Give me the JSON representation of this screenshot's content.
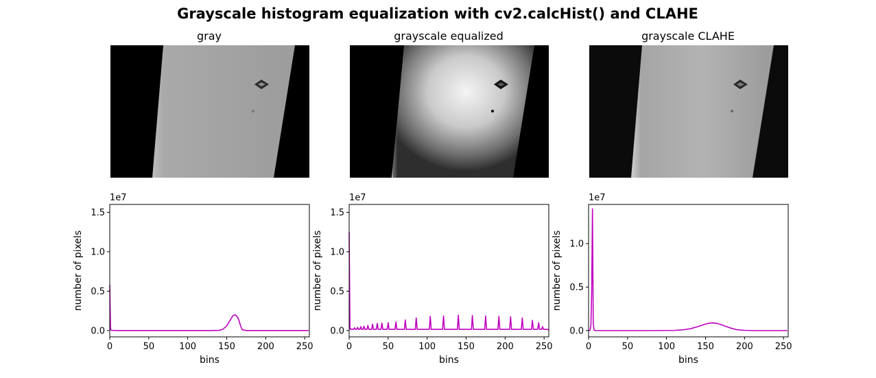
{
  "figure": {
    "title": "Grayscale histogram equalization with cv2.calcHist() and CLAHE"
  },
  "panels": [
    {
      "title": "gray",
      "image": {
        "kind": "gray",
        "left_edge": [
          0.27,
          0.21
        ],
        "right_edge": [
          0.93,
          0.82
        ],
        "strip_value": 0.63,
        "bg_value": 0.0
      }
    },
    {
      "title": "grayscale equalized",
      "image": {
        "kind": "equalized",
        "left_edge": [
          0.28,
          0.21
        ],
        "right_edge": [
          0.93,
          0.82
        ],
        "strip_value": 0.75,
        "bg_value": 0.0
      }
    },
    {
      "title": "grayscale CLAHE",
      "image": {
        "kind": "clahe",
        "left_edge": [
          0.27,
          0.21
        ],
        "right_edge": [
          0.93,
          0.82
        ],
        "strip_value": 0.62,
        "bg_value": 0.04
      }
    }
  ],
  "chart_data": [
    {
      "type": "line",
      "title": "",
      "xlabel": "bins",
      "ylabel": "number of pixels",
      "offset_label": "1e7",
      "color": "#bf00bf",
      "xlim": [
        0,
        256
      ],
      "ylim": [
        -0.8,
        16.0
      ],
      "xticks": [
        "0",
        "50",
        "100",
        "150",
        "200",
        "250"
      ],
      "yticks": [
        "0.0",
        "0.5",
        "1.0",
        "1.5"
      ],
      "ytick_values": [
        0,
        5,
        10,
        15
      ],
      "series": [
        {
          "x": [
            0,
            1,
            2,
            10,
            50,
            100,
            130,
            140,
            145,
            150,
            155,
            158,
            161,
            164,
            166,
            168,
            170,
            175,
            180,
            200,
            255
          ],
          "y": [
            5.8,
            0.2,
            0.02,
            0.0,
            0.0,
            0.0,
            0.0,
            0.02,
            0.15,
            0.6,
            1.4,
            1.9,
            2.0,
            1.7,
            1.2,
            0.5,
            0.1,
            0.0,
            0.0,
            0.0,
            0.0
          ]
        }
      ]
    },
    {
      "type": "line",
      "title": "",
      "xlabel": "bins",
      "ylabel": "number of pixels",
      "offset_label": "1e7",
      "color": "#bf00bf",
      "xlim": [
        0,
        256
      ],
      "ylim": [
        -0.8,
        16.0
      ],
      "xticks": [
        "0",
        "50",
        "100",
        "150",
        "200",
        "250"
      ],
      "yticks": [
        "0.0",
        "0.5",
        "1.0",
        "1.5"
      ],
      "ytick_values": [
        0,
        5,
        10,
        15
      ],
      "series": [
        {
          "spike_baseline": 0.15,
          "x": [
            0,
            1,
            3,
            7,
            11,
            15,
            19,
            24,
            30,
            36,
            42,
            50,
            60,
            72,
            86,
            104,
            121,
            140,
            158,
            175,
            192,
            207,
            222,
            235,
            243,
            248,
            255
          ],
          "y": [
            12.5,
            0.3,
            0.2,
            0.35,
            0.4,
            0.5,
            0.55,
            0.65,
            0.8,
            0.9,
            0.95,
            1.0,
            1.1,
            1.35,
            1.6,
            1.8,
            1.85,
            1.95,
            1.9,
            1.85,
            1.8,
            1.75,
            1.6,
            1.3,
            1.0,
            0.5,
            0.1
          ]
        }
      ]
    },
    {
      "type": "line",
      "title": "",
      "xlabel": "bins",
      "ylabel": "number of pixels",
      "offset_label": "1e7",
      "color": "#bf00bf",
      "xlim": [
        0,
        256
      ],
      "ylim": [
        -0.72,
        14.5
      ],
      "xticks": [
        "0",
        "50",
        "100",
        "150",
        "200",
        "250"
      ],
      "yticks": [
        "0.0",
        "0.5",
        "1.0"
      ],
      "ytick_values": [
        0,
        5,
        10
      ],
      "series": [
        {
          "x": [
            0,
            2,
            3,
            4,
            5,
            6,
            7,
            8,
            20,
            80,
            110,
            120,
            130,
            140,
            150,
            155,
            160,
            165,
            170,
            180,
            190,
            200,
            210,
            255
          ],
          "y": [
            0.0,
            0.05,
            0.6,
            4.5,
            14.0,
            0.8,
            0.1,
            0.0,
            0.0,
            0.0,
            0.02,
            0.08,
            0.2,
            0.45,
            0.75,
            0.85,
            0.88,
            0.82,
            0.68,
            0.35,
            0.1,
            0.03,
            0.0,
            0.0
          ]
        }
      ]
    }
  ]
}
